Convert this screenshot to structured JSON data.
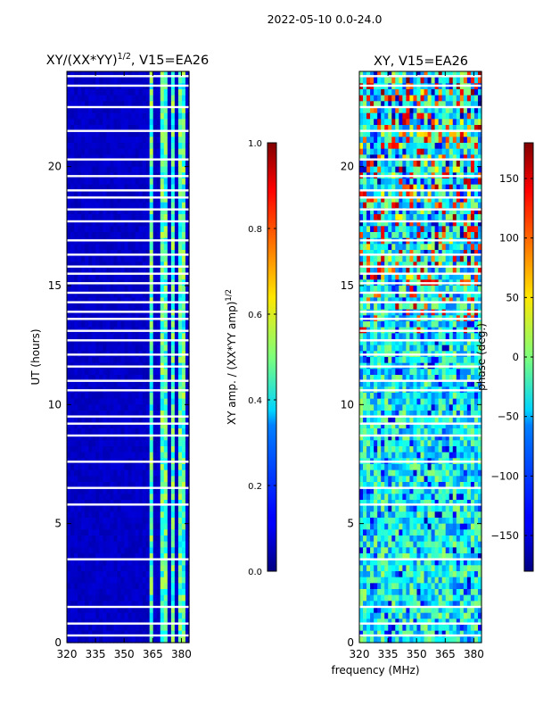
{
  "suptitle": "2022-05-10 0.0-24.0",
  "colors": {
    "background": "#ffffff",
    "mask_lines": "#ffffff",
    "frame": "#000000"
  },
  "chart_data": [
    {
      "type": "heatmap",
      "title": "XY/(XX*YY)^{1/2}, V15=EA26",
      "title_main": "XY/(XX*YY)",
      "title_sup": "1/2",
      "title_tail": ", V15=EA26",
      "xlabel": "",
      "ylabel": "UT (hours)",
      "xlim": [
        320,
        384
      ],
      "ylim": [
        0,
        24
      ],
      "xticks": [
        320,
        335,
        350,
        365,
        380
      ],
      "yticks": [
        0,
        5,
        10,
        15,
        20
      ],
      "colormap": "jet",
      "colorbar": {
        "label": "XY amp. / (XX*YY amp)^{1/2}",
        "label_main": "XY amp. / (XX*YY amp)",
        "label_sup": "1/2",
        "range": [
          0.0,
          1.0
        ],
        "ticks": [
          "0.0",
          "0.2",
          "0.4",
          "0.6",
          "0.8",
          "1.0"
        ],
        "tick_values": [
          0.0,
          0.2,
          0.4,
          0.6,
          0.8,
          1.0
        ]
      },
      "background_value": 0.05,
      "bright_channels_mhz": [
        [
          363.5,
          366
        ],
        [
          368.5,
          372
        ],
        [
          374.5,
          377
        ],
        [
          379,
          383
        ]
      ],
      "bright_channel_value": 0.45,
      "flagged_rows_hours": [
        0.3,
        0.8,
        1.5,
        3.5,
        5.8,
        6.5,
        7.6,
        8.7,
        9.2,
        9.5,
        10.6,
        11.0,
        11.6,
        12.1,
        12.7,
        13.1,
        13.6,
        13.9,
        14.3,
        14.7,
        15.1,
        15.5,
        15.8,
        16.3,
        16.9,
        17.7,
        18.2,
        18.7,
        19.0,
        19.6,
        20.3,
        21.5,
        22.5,
        23.4,
        23.8
      ]
    },
    {
      "type": "heatmap",
      "title": "XY, V15=EA26",
      "xlabel": "frequency (MHz)",
      "ylabel": "",
      "xlim": [
        320,
        384
      ],
      "ylim": [
        0,
        24
      ],
      "xticks": [
        320,
        335,
        350,
        365,
        380
      ],
      "yticks": [
        0,
        5,
        10,
        15,
        20
      ],
      "colormap": "jet",
      "colorbar": {
        "label": "phase (deg.)",
        "range": [
          -180,
          180
        ],
        "ticks": [
          "−150",
          "−100",
          "−50",
          "0",
          "50",
          "100",
          "150"
        ],
        "tick_values": [
          -150,
          -100,
          -50,
          0,
          50,
          100,
          150
        ]
      },
      "dominant_phase_deg": -40,
      "flagged_rows_hours": [
        0.3,
        0.8,
        1.5,
        3.5,
        5.8,
        6.5,
        7.6,
        8.7,
        9.2,
        9.5,
        10.6,
        11.0,
        11.6,
        12.1,
        12.7,
        13.1,
        13.6,
        13.9,
        14.3,
        14.7,
        15.1,
        15.5,
        15.8,
        16.3,
        16.9,
        17.7,
        18.2,
        18.7,
        19.0,
        19.6,
        20.3,
        21.5,
        22.5,
        23.4,
        23.8
      ]
    }
  ]
}
